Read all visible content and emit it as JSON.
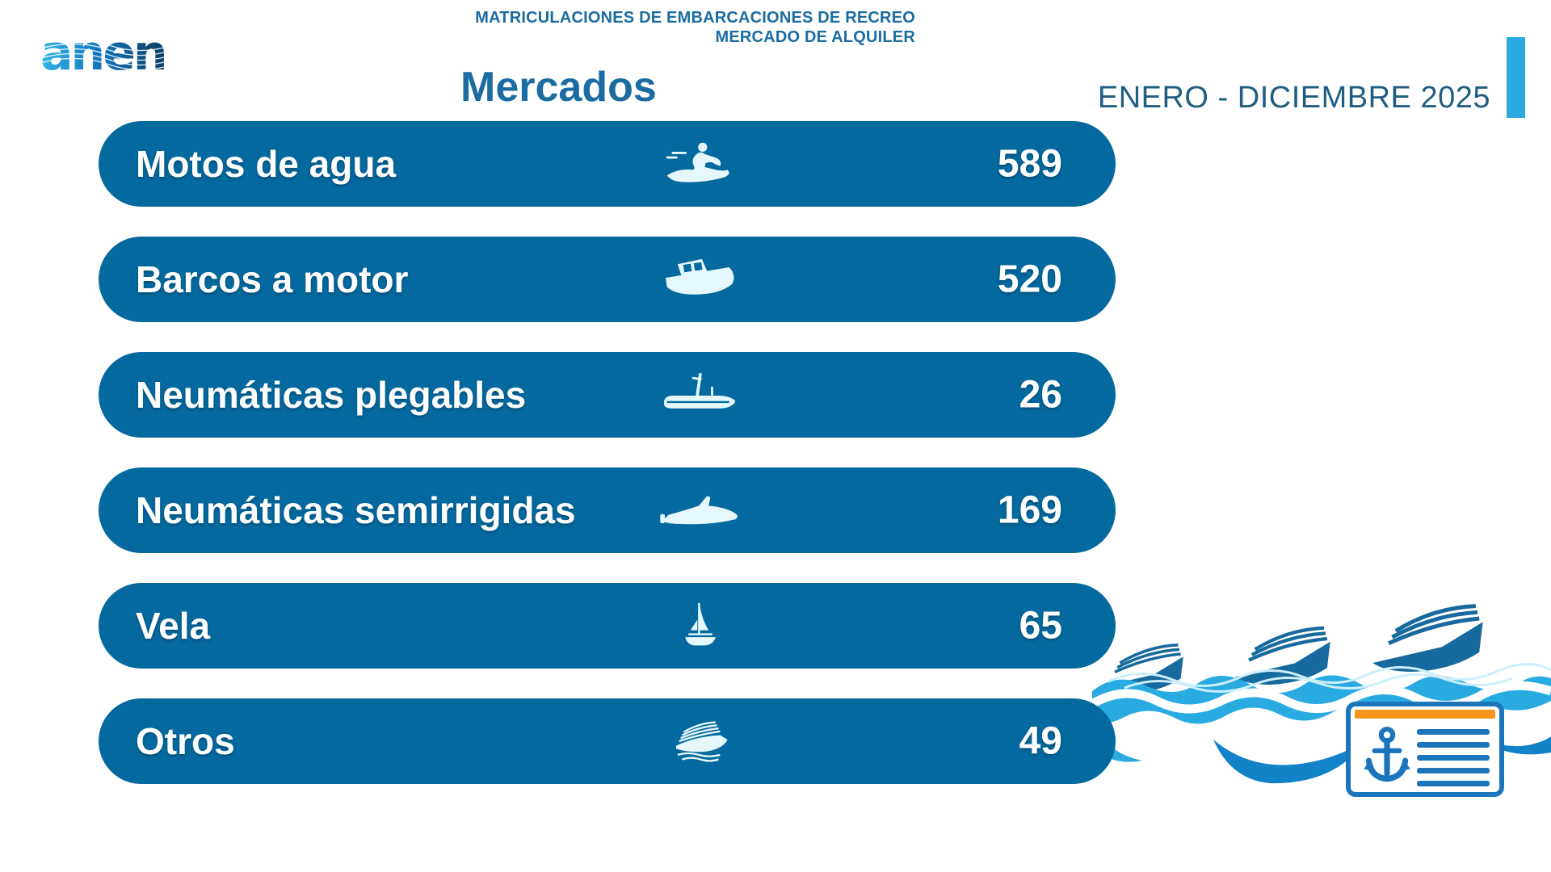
{
  "logo": {
    "text": "anen"
  },
  "header": {
    "line1": "MATRICULACIONES DE EMBARCACIONES DE RECREO",
    "line2": "MERCADO DE ALQUILER",
    "section_title": "Mercados",
    "period": "ENERO - DICIEMBRE 2025"
  },
  "chart_data": {
    "type": "table",
    "title": "Mercados",
    "subtitle": "MATRICULACIONES DE EMBARCACIONES DE RECREO - MERCADO DE ALQUILER",
    "period": "ENERO - DICIEMBRE 2025",
    "categories": [
      "Motos de agua",
      "Barcos a motor",
      "Neumáticas plegables",
      "Neumáticas semirrigidas",
      "Vela",
      "Otros"
    ],
    "values": [
      589,
      520,
      26,
      169,
      65,
      49
    ],
    "legend": "none",
    "layout": "horizontal pill rows, equal width, value right-aligned"
  },
  "rows": [
    {
      "label": "Motos de agua",
      "value": "589",
      "icon": "jet-ski-icon"
    },
    {
      "label": "Barcos a motor",
      "value": "520",
      "icon": "motorboat-icon"
    },
    {
      "label": "Neumáticas plegables",
      "value": "26",
      "icon": "inflatable-boat-icon"
    },
    {
      "label": "Neumáticas semirrigidas",
      "value": "169",
      "icon": "rib-boat-icon"
    },
    {
      "label": "Vela",
      "value": "65",
      "icon": "sailboat-icon"
    },
    {
      "label": "Otros",
      "value": "49",
      "icon": "yacht-icon"
    }
  ],
  "colors": {
    "page_bg": "#FFFFFF",
    "bar": "#04699E",
    "title": "#1A6CA1",
    "period_text": "#1F5E81",
    "accent": "#29ABE2",
    "icon": "#E4F8FD",
    "wave_light": "#29ABE2",
    "wave_mid": "#1283C9",
    "wave_dark": "#176A9E",
    "wave_pale": "#CDEFFB",
    "doc_border": "#1B75BC",
    "doc_topbar": "#F7941E"
  },
  "decor": {
    "waves": "waves-and-boats-illustration",
    "document": "anchor-document-icon"
  }
}
